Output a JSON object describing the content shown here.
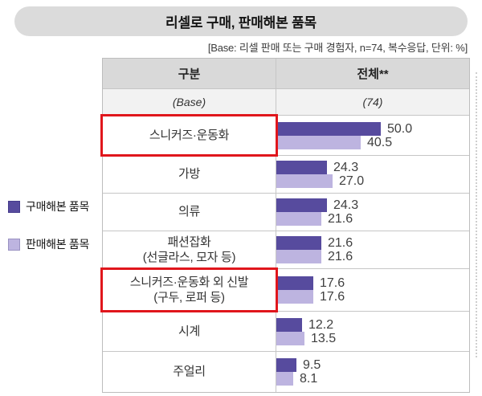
{
  "table": {
    "col1_header": "구분",
    "col2_header": "전체**",
    "base_label": "(Base)",
    "base_value": "(74)"
  },
  "chart_data": {
    "type": "bar",
    "orientation": "horizontal",
    "title": "리셀로 구매, 판매해본 품목",
    "base_note": "[Base: 리셀 판매 또는 구매 경험자, n=74, 복수응답, 단위: %]",
    "unit": "%",
    "n": 74,
    "categories": [
      "스니커즈·운동화",
      "가방",
      "의류",
      "패션잡화\n(선글라스, 모자 등)",
      "스니커즈·운동화 외 신발\n(구두, 로퍼 등)",
      "시계",
      "주얼리"
    ],
    "series": [
      {
        "name": "구매해본 품목",
        "color": "#574B9E",
        "values": [
          50.0,
          24.3,
          24.3,
          21.6,
          17.6,
          12.2,
          9.5
        ]
      },
      {
        "name": "판매해본 품목",
        "color": "#BDB4E0",
        "values": [
          40.5,
          27.0,
          21.6,
          21.6,
          17.6,
          13.5,
          8.1
        ]
      }
    ],
    "highlighted": [
      true,
      false,
      false,
      false,
      true,
      false,
      false
    ],
    "highlight_color": "#E0161C",
    "xlim": [
      0,
      55
    ],
    "legend_position": "left",
    "grid": false
  }
}
